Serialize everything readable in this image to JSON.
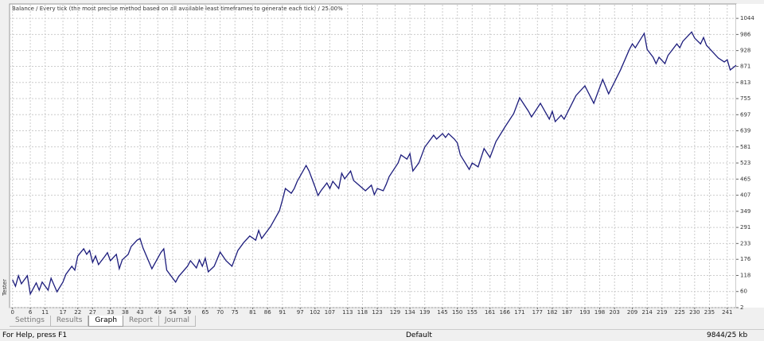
{
  "side_label": "Tester",
  "tabs": [
    "Settings",
    "Results",
    "Graph",
    "Report",
    "Journal"
  ],
  "active_tab": "Graph",
  "status": [
    "For Help, press F1",
    "Default",
    "9844/25 kb"
  ],
  "chart_data": {
    "type": "line",
    "title": "Balance / Every tick (the most precise method based on all available least timeframes to generate each tick) / 25.00%",
    "color": "#1c1c7c",
    "grid": true,
    "x": [
      0,
      1,
      2,
      3,
      5,
      6,
      8,
      9,
      10,
      12,
      13,
      15,
      17,
      18,
      20,
      21,
      22,
      24,
      25,
      26,
      27,
      28,
      29,
      31,
      32,
      33,
      35,
      36,
      37,
      39,
      40,
      42,
      43,
      44,
      47,
      50,
      51,
      52,
      55,
      56,
      59,
      60,
      62,
      63,
      64,
      65,
      66,
      68,
      70,
      72,
      74,
      76,
      78,
      80,
      82,
      83,
      84,
      87,
      90,
      91,
      92,
      94,
      95,
      96,
      99,
      100,
      102,
      103,
      104,
      106,
      107,
      108,
      110,
      111,
      112,
      114,
      115,
      116,
      119,
      121,
      122,
      123,
      125,
      126,
      127,
      130,
      131,
      133,
      134,
      135,
      137,
      139,
      142,
      143,
      145,
      146,
      147,
      149,
      150,
      151,
      154,
      155,
      157,
      159,
      161,
      163,
      166,
      169,
      171,
      174,
      175,
      178,
      181,
      182,
      183,
      185,
      186,
      190,
      193,
      196,
      199,
      201,
      205,
      208,
      209,
      210,
      213,
      214,
      216,
      217,
      218,
      220,
      221,
      224,
      225,
      226,
      229,
      230,
      232,
      233,
      234,
      236,
      238,
      240,
      241,
      242,
      244
    ],
    "values": [
      102,
      79,
      117,
      88,
      117,
      51,
      91,
      65,
      94,
      65,
      108,
      59,
      94,
      122,
      151,
      137,
      188,
      214,
      194,
      208,
      165,
      188,
      157,
      185,
      200,
      171,
      194,
      142,
      174,
      194,
      222,
      245,
      251,
      217,
      142,
      200,
      214,
      137,
      94,
      114,
      151,
      171,
      145,
      174,
      151,
      180,
      131,
      151,
      202,
      171,
      151,
      208,
      237,
      260,
      245,
      280,
      251,
      294,
      351,
      389,
      431,
      414,
      431,
      457,
      514,
      494,
      437,
      406,
      423,
      451,
      431,
      457,
      431,
      486,
      466,
      494,
      460,
      451,
      423,
      443,
      409,
      431,
      423,
      446,
      474,
      523,
      552,
      537,
      557,
      494,
      523,
      580,
      623,
      609,
      629,
      615,
      629,
      609,
      595,
      552,
      500,
      523,
      509,
      575,
      543,
      600,
      652,
      701,
      758,
      709,
      689,
      738,
      681,
      709,
      672,
      695,
      681,
      766,
      801,
      738,
      824,
      772,
      858,
      932,
      952,
      938,
      990,
      932,
      904,
      881,
      904,
      881,
      910,
      952,
      938,
      961,
      995,
      973,
      952,
      975,
      947,
      924,
      901,
      887,
      895,
      858,
      875
    ],
    "xlim": [
      -1,
      244
    ],
    "ylim": [
      2,
      1093
    ],
    "xticks": [
      0,
      6,
      11,
      17,
      22,
      27,
      33,
      38,
      43,
      49,
      54,
      59,
      65,
      70,
      75,
      81,
      86,
      91,
      97,
      102,
      107,
      113,
      118,
      123,
      129,
      134,
      139,
      145,
      150,
      155,
      161,
      166,
      171,
      177,
      182,
      187,
      193,
      198,
      203,
      209,
      214,
      219,
      225,
      230,
      235,
      241
    ],
    "yticks": [
      2,
      60,
      118,
      176,
      233,
      291,
      349,
      407,
      465,
      523,
      581,
      639,
      697,
      755,
      813,
      871,
      928,
      986,
      1044
    ]
  }
}
